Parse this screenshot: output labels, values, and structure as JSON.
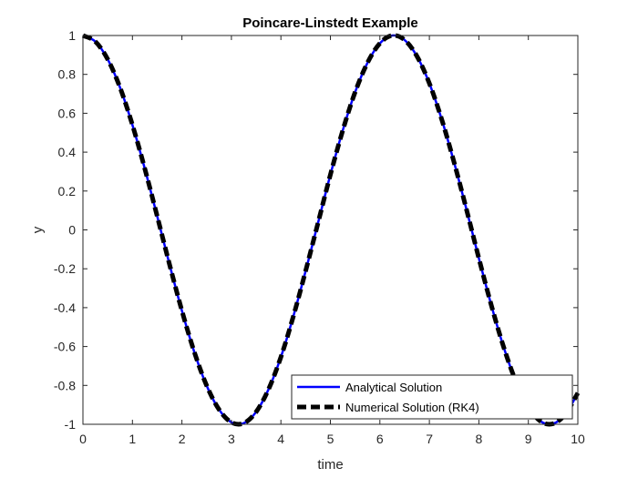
{
  "chart_data": {
    "type": "line",
    "title": "Poincare-Linstedt Example",
    "xlabel": "time",
    "ylabel": "y",
    "xlim": [
      0,
      10
    ],
    "ylim": [
      -1,
      1
    ],
    "xticks": [
      0,
      1,
      2,
      3,
      4,
      5,
      6,
      7,
      8,
      9,
      10
    ],
    "xtick_labels": [
      "0",
      "1",
      "2",
      "3",
      "4",
      "5",
      "6",
      "7",
      "8",
      "9",
      "10"
    ],
    "yticks": [
      -1,
      -0.8,
      -0.6,
      -0.4,
      -0.2,
      0,
      0.2,
      0.4,
      0.6,
      0.8,
      1
    ],
    "ytick_labels": [
      "-1",
      "-0.8",
      "-0.6",
      "-0.4",
      "-0.2",
      "0",
      "0.2",
      "0.4",
      "0.6",
      "0.8",
      "1"
    ],
    "grid": false,
    "legend_position": "bottom-right",
    "series": [
      {
        "name": "Analytical Solution",
        "color": "#0000ff",
        "style": "solid",
        "x": [
          0,
          0.25,
          0.5,
          0.75,
          1,
          1.25,
          1.5,
          1.75,
          2,
          2.25,
          2.5,
          2.75,
          3,
          3.25,
          3.5,
          3.75,
          4,
          4.25,
          4.5,
          4.75,
          5,
          5.25,
          5.5,
          5.75,
          6,
          6.25,
          6.5,
          6.75,
          7,
          7.25,
          7.5,
          7.75,
          8,
          8.25,
          8.5,
          8.75,
          9,
          9.25,
          9.5,
          9.75,
          10
        ],
        "y": [
          1,
          0.969,
          0.878,
          0.732,
          0.54,
          0.315,
          0.071,
          -0.178,
          -0.416,
          -0.628,
          -0.801,
          -0.924,
          -0.99,
          -0.994,
          -0.936,
          -0.82,
          -0.654,
          -0.446,
          -0.211,
          0.036,
          0.284,
          0.512,
          0.709,
          0.86,
          0.96,
          1,
          0.977,
          0.893,
          0.754,
          0.568,
          0.347,
          0.105,
          -0.146,
          -0.386,
          -0.602,
          -0.781,
          -0.911,
          -0.985,
          -0.997,
          -0.947,
          -0.839
        ]
      },
      {
        "name": "Numerical Solution (RK4)",
        "color": "#000000",
        "style": "dashed",
        "x": [
          0,
          0.25,
          0.5,
          0.75,
          1,
          1.25,
          1.5,
          1.75,
          2,
          2.25,
          2.5,
          2.75,
          3,
          3.25,
          3.5,
          3.75,
          4,
          4.25,
          4.5,
          4.75,
          5,
          5.25,
          5.5,
          5.75,
          6,
          6.25,
          6.5,
          6.75,
          7,
          7.25,
          7.5,
          7.75,
          8,
          8.25,
          8.5,
          8.75,
          9,
          9.25,
          9.5,
          9.75,
          10
        ],
        "y": [
          1,
          0.969,
          0.878,
          0.732,
          0.54,
          0.315,
          0.071,
          -0.178,
          -0.416,
          -0.628,
          -0.801,
          -0.924,
          -0.99,
          -0.994,
          -0.936,
          -0.82,
          -0.654,
          -0.446,
          -0.211,
          0.036,
          0.284,
          0.512,
          0.709,
          0.86,
          0.96,
          1,
          0.977,
          0.893,
          0.754,
          0.568,
          0.347,
          0.105,
          -0.146,
          -0.386,
          -0.602,
          -0.781,
          -0.911,
          -0.985,
          -0.997,
          -0.947,
          -0.839
        ]
      }
    ]
  }
}
